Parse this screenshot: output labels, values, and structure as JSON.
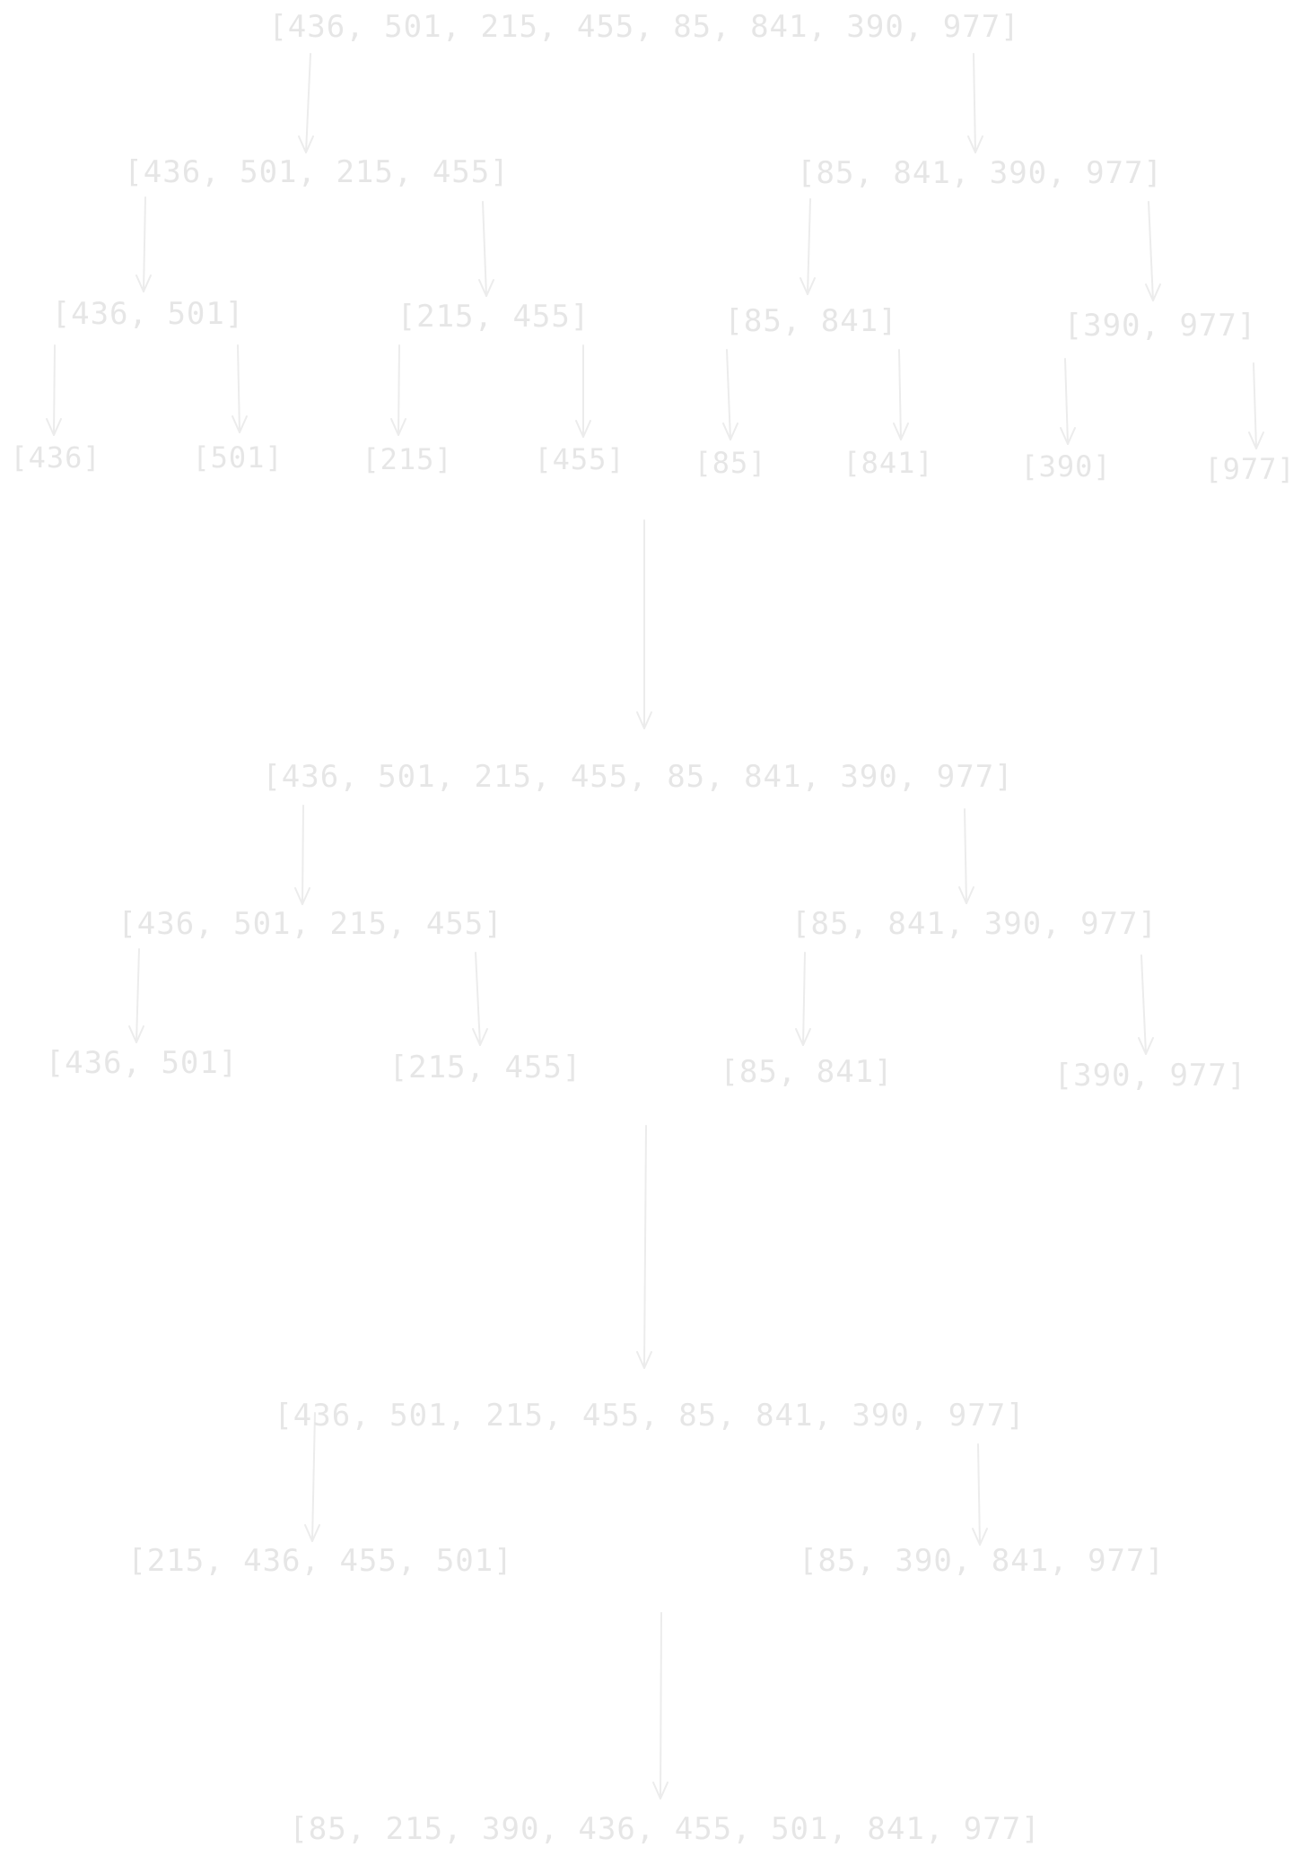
{
  "palette": {
    "ink": "#e6e6e6",
    "line": "#ececec",
    "background": "#ffffff"
  },
  "stage1": {
    "root": "[436, 501, 215, 455, 85, 841, 390, 977]",
    "left": "[436, 501, 215, 455]",
    "right": "[85, 841, 390, 977]",
    "ll": "[436, 501]",
    "lr": "[215, 455]",
    "rl": "[85, 841]",
    "rr": "[390, 977]",
    "leaves": [
      "[436]",
      "[501]",
      "[215]",
      "[455]",
      "[85]",
      "[841]",
      "[390]",
      "[977]"
    ]
  },
  "stage2": {
    "root": "[436, 501, 215, 455, 85, 841, 390, 977]",
    "left": "[436, 501, 215, 455]",
    "right": "[85, 841, 390, 977]",
    "pairs": [
      "[436, 501]",
      "[215, 455]",
      "[85, 841]",
      "[390, 977]"
    ]
  },
  "stage3": {
    "root": "[436, 501, 215, 455, 85, 841, 390, 977]",
    "left": "[215, 436, 455, 501]",
    "right": "[85, 390, 841, 977]"
  },
  "result": "[85, 215, 390, 436, 455, 501, 841, 977]"
}
